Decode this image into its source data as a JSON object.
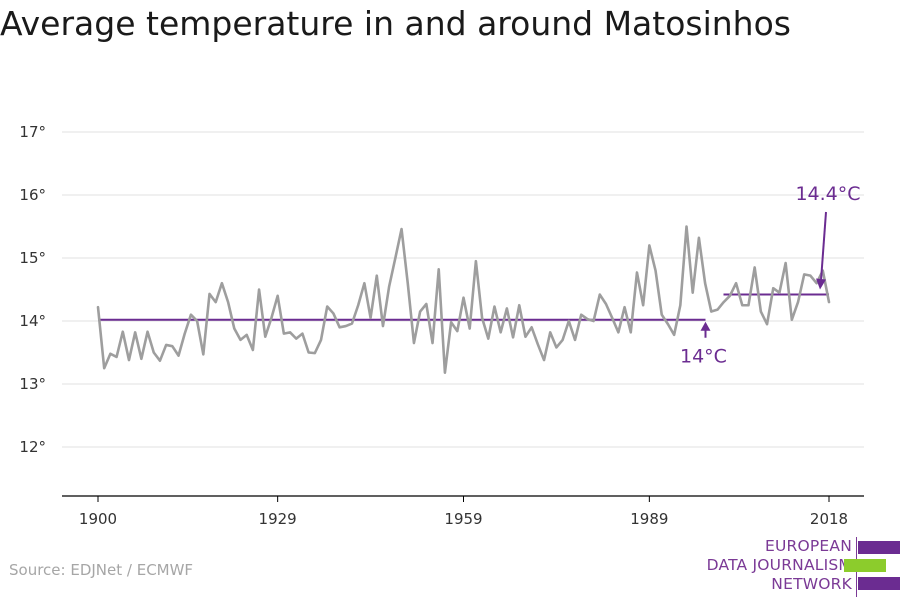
{
  "title": "Average temperature in and around Matosinhos",
  "source": "Source: EDJNet / ECMWF",
  "logo": {
    "lines": [
      "EUROPEAN",
      "DATA JOURNALISM",
      "NETWORK"
    ],
    "colors": {
      "purple": "#6b2c91",
      "green": "#8ccc2c"
    }
  },
  "colors": {
    "series": "#9e9e9e",
    "reference": "#6b2c91",
    "grid": "#e0e0e0",
    "axis": "#000000",
    "annotation": "#6b2c91"
  },
  "chart_data": {
    "type": "line",
    "title": "Average temperature in and around Matosinhos",
    "xlabel": "",
    "ylabel": "",
    "xlim": [
      1900,
      2018
    ],
    "ylim": [
      12,
      17
    ],
    "x_ticks": [
      1900,
      1929,
      1959,
      1989,
      2018
    ],
    "y_ticks": [
      12,
      13,
      14,
      15,
      16,
      17
    ],
    "y_tick_labels": [
      "12°",
      "13°",
      "14°",
      "15°",
      "16°",
      "17°"
    ],
    "grid": true,
    "series": [
      {
        "x": [
          1900,
          1901,
          1902,
          1903,
          1904,
          1905,
          1906,
          1907,
          1908,
          1909,
          1910,
          1911,
          1912,
          1913,
          1914,
          1915,
          1916,
          1917,
          1918,
          1919,
          1920,
          1921,
          1922,
          1923,
          1924,
          1925,
          1926,
          1927,
          1928,
          1929,
          1930,
          1931,
          1932,
          1933,
          1934,
          1935,
          1936,
          1937,
          1938,
          1939,
          1940,
          1941,
          1942,
          1943,
          1944,
          1945,
          1946,
          1947,
          1948,
          1949,
          1950,
          1951,
          1952,
          1953,
          1954,
          1955,
          1956,
          1957,
          1958,
          1959,
          1960,
          1961,
          1962,
          1963,
          1964,
          1965,
          1966,
          1967,
          1968,
          1969,
          1970,
          1971,
          1972,
          1973,
          1974,
          1975,
          1976,
          1977,
          1978,
          1979,
          1980,
          1981,
          1982,
          1983,
          1984,
          1985,
          1986,
          1987,
          1988,
          1989,
          1990,
          1991,
          1992,
          1993,
          1994,
          1995,
          1996,
          1997,
          1998,
          1999,
          2000,
          2001,
          2002,
          2003,
          2004,
          2005,
          2006,
          2007,
          2008,
          2009,
          2010,
          2011,
          2012,
          2013,
          2014,
          2015,
          2016,
          2017,
          2018
        ],
        "values": [
          14.22,
          13.25,
          13.48,
          13.43,
          13.83,
          13.38,
          13.82,
          13.4,
          13.83,
          13.5,
          13.37,
          13.62,
          13.6,
          13.45,
          13.8,
          14.1,
          14.0,
          13.47,
          14.43,
          14.3,
          14.6,
          14.3,
          13.88,
          13.7,
          13.78,
          13.54,
          14.5,
          13.75,
          14.05,
          14.4,
          13.8,
          13.82,
          13.72,
          13.8,
          13.5,
          13.49,
          13.7,
          14.23,
          14.12,
          13.9,
          13.92,
          13.96,
          14.25,
          14.6,
          14.05,
          14.72,
          13.92,
          14.55,
          15.0,
          15.46,
          14.6,
          13.65,
          14.15,
          14.27,
          13.65,
          14.82,
          13.18,
          13.98,
          13.84,
          14.37,
          13.88,
          14.95,
          14.05,
          13.72,
          14.23,
          13.82,
          14.2,
          13.74,
          14.25,
          13.75,
          13.9,
          13.63,
          13.38,
          13.82,
          13.58,
          13.7,
          14.0,
          13.7,
          14.1,
          14.03,
          14.0,
          14.42,
          14.27,
          14.05,
          13.82,
          14.22,
          13.82,
          14.77,
          14.25,
          15.2,
          14.8,
          14.1,
          13.95,
          13.78,
          14.25,
          15.5,
          14.45,
          15.32,
          14.6,
          14.15,
          14.18,
          14.3,
          14.4,
          14.6,
          14.25,
          14.25,
          14.85,
          14.15,
          13.95,
          14.52,
          14.45,
          14.92,
          14.02,
          14.3,
          14.74,
          14.72,
          14.6,
          14.8,
          14.3
        ]
      }
    ],
    "reference_lines": [
      {
        "label": "14°C",
        "value": 14.02,
        "x_start": 1900,
        "x_end": 2000
      },
      {
        "label": "14.4°C",
        "value": 14.42,
        "x_start": 2000,
        "x_end": 2018
      }
    ]
  }
}
